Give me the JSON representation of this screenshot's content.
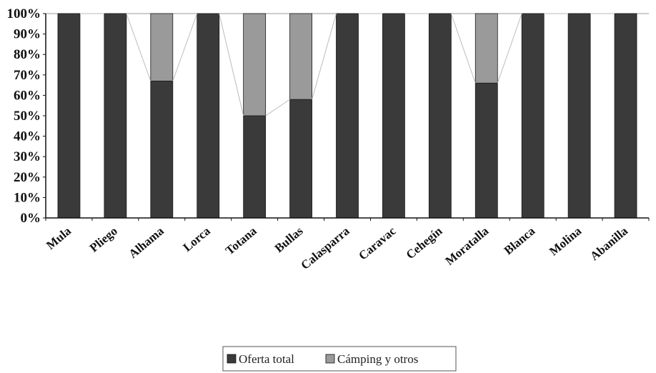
{
  "chart_data": {
    "type": "bar",
    "stacked": true,
    "percent_stacked": true,
    "categories": [
      "Mula",
      "Pliego",
      "Alhama",
      "Lorca",
      "Totana",
      "Bullas",
      "Calasparra",
      "Caravac",
      "Cehegín",
      "Moratalla",
      "Blanca",
      "Molina",
      "Abanilla"
    ],
    "series": [
      {
        "name": "Oferta total",
        "values": [
          100,
          100,
          67,
          100,
          50,
          58,
          100,
          100,
          100,
          66,
          100,
          100,
          100
        ]
      },
      {
        "name": "Cámping y otros",
        "values": [
          0,
          0,
          33,
          0,
          50,
          42,
          0,
          0,
          0,
          34,
          0,
          0,
          0
        ]
      }
    ],
    "yticks": [
      "0%",
      "10%",
      "20%",
      "30%",
      "40%",
      "50%",
      "60%",
      "70%",
      "80%",
      "90%",
      "100%"
    ],
    "ylim": [
      0,
      100
    ],
    "series_lines": true,
    "legend_position": "bottom",
    "colors": {
      "Oferta total": "#3a3a3a",
      "Cámping y otros": "#9a9a9a",
      "series_line": "#bbbbbb",
      "axis": "#111111"
    }
  }
}
